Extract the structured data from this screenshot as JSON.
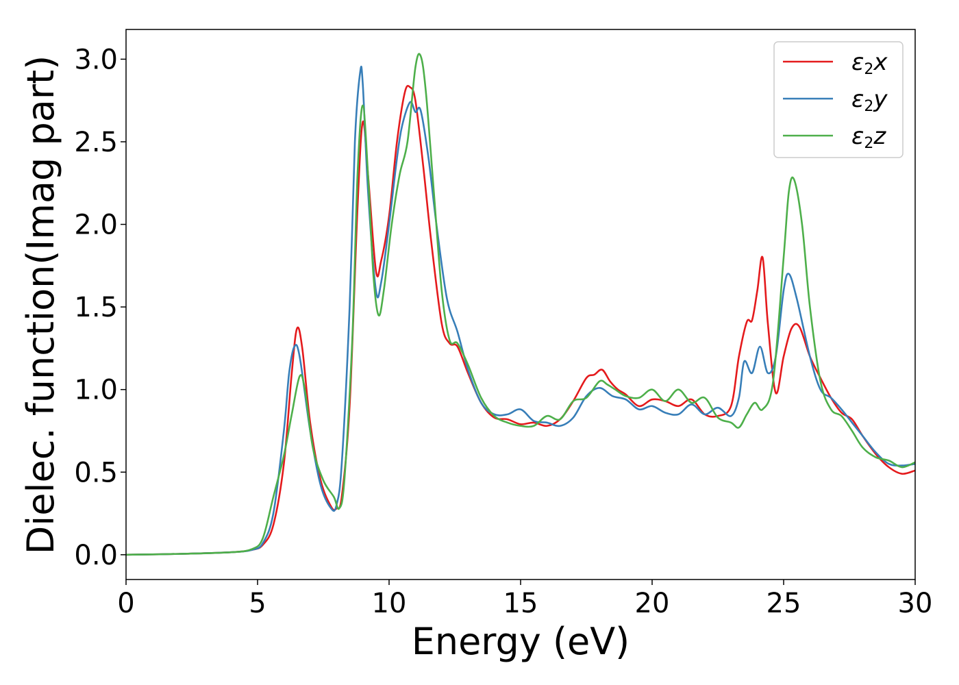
{
  "chart_data": {
    "type": "line",
    "title": "",
    "xlabel": "Energy (eV)",
    "ylabel": "Dielec. function(Imag part)",
    "xlim": [
      0,
      30
    ],
    "ylim": [
      -0.15,
      3.18
    ],
    "xticks": [
      0,
      5,
      10,
      15,
      20,
      25,
      30
    ],
    "xtick_labels": [
      "0",
      "5",
      "10",
      "15",
      "20",
      "25",
      "30"
    ],
    "yticks": [
      0.0,
      0.5,
      1.0,
      1.5,
      2.0,
      2.5,
      3.0
    ],
    "ytick_labels": [
      "0.0",
      "0.5",
      "1.0",
      "1.5",
      "2.0",
      "2.5",
      "3.0"
    ],
    "grid": false,
    "legend_position": "top-right",
    "series": [
      {
        "name": "ε₂x",
        "legend_base": "ε",
        "legend_sub": "2",
        "legend_var": "x",
        "color": "#e41a1c",
        "x": [
          0,
          2,
          4,
          4.8,
          5.2,
          5.6,
          6.0,
          6.3,
          6.5,
          6.7,
          7.0,
          7.4,
          7.8,
          8.0,
          8.2,
          8.5,
          8.8,
          9.0,
          9.2,
          9.5,
          9.7,
          10.0,
          10.3,
          10.6,
          10.8,
          11.0,
          11.3,
          11.6,
          12.0,
          12.3,
          12.6,
          13.0,
          13.5,
          14.0,
          14.5,
          15.0,
          15.5,
          16.0,
          16.5,
          17.0,
          17.5,
          17.8,
          18.1,
          18.4,
          18.7,
          19.0,
          19.5,
          20.0,
          20.5,
          21.0,
          21.5,
          22.0,
          22.5,
          23.0,
          23.3,
          23.6,
          23.8,
          24.0,
          24.2,
          24.4,
          24.7,
          25.0,
          25.3,
          25.6,
          26.0,
          26.4,
          26.8,
          27.2,
          27.6,
          28.0,
          28.5,
          29.0,
          29.5,
          30.0
        ],
        "values": [
          0,
          0.005,
          0.015,
          0.03,
          0.06,
          0.18,
          0.55,
          1.1,
          1.37,
          1.25,
          0.8,
          0.45,
          0.29,
          0.28,
          0.35,
          0.9,
          2.1,
          2.62,
          2.3,
          1.72,
          1.78,
          2.05,
          2.5,
          2.8,
          2.83,
          2.75,
          2.35,
          1.9,
          1.4,
          1.28,
          1.26,
          1.1,
          0.92,
          0.83,
          0.82,
          0.79,
          0.8,
          0.78,
          0.82,
          0.93,
          1.07,
          1.09,
          1.12,
          1.05,
          1.0,
          0.97,
          0.9,
          0.94,
          0.93,
          0.9,
          0.94,
          0.85,
          0.84,
          0.9,
          1.2,
          1.41,
          1.42,
          1.6,
          1.8,
          1.4,
          0.98,
          1.2,
          1.37,
          1.38,
          1.2,
          1.07,
          0.95,
          0.86,
          0.82,
          0.72,
          0.61,
          0.53,
          0.49,
          0.51
        ]
      },
      {
        "name": "ε₂y",
        "legend_base": "ε",
        "legend_sub": "2",
        "legend_var": "y",
        "color": "#377eb8",
        "x": [
          0,
          2,
          4,
          4.8,
          5.2,
          5.6,
          6.0,
          6.2,
          6.4,
          6.6,
          7.0,
          7.4,
          7.8,
          8.0,
          8.2,
          8.5,
          8.7,
          8.9,
          9.0,
          9.2,
          9.5,
          9.7,
          10.0,
          10.3,
          10.5,
          10.8,
          11.0,
          11.2,
          11.5,
          11.8,
          12.2,
          12.6,
          13.0,
          13.5,
          14.0,
          14.5,
          15.0,
          15.5,
          16.0,
          16.5,
          17.0,
          17.5,
          18.0,
          18.5,
          19.0,
          19.5,
          20.0,
          20.5,
          21.0,
          21.5,
          22.0,
          22.5,
          23.0,
          23.3,
          23.5,
          23.8,
          24.1,
          24.4,
          24.7,
          25.0,
          25.2,
          25.5,
          26.0,
          26.4,
          26.8,
          27.2,
          27.6,
          28.0,
          28.5,
          29.0,
          29.5,
          30.0
        ],
        "values": [
          0,
          0.005,
          0.015,
          0.03,
          0.07,
          0.25,
          0.75,
          1.1,
          1.26,
          1.2,
          0.75,
          0.42,
          0.28,
          0.3,
          0.55,
          1.5,
          2.5,
          2.92,
          2.85,
          2.2,
          1.6,
          1.65,
          2.0,
          2.4,
          2.6,
          2.74,
          2.68,
          2.69,
          2.4,
          2.0,
          1.55,
          1.35,
          1.12,
          0.92,
          0.85,
          0.85,
          0.88,
          0.81,
          0.8,
          0.78,
          0.83,
          0.96,
          1.01,
          0.96,
          0.94,
          0.88,
          0.9,
          0.86,
          0.85,
          0.91,
          0.85,
          0.89,
          0.84,
          0.95,
          1.17,
          1.1,
          1.26,
          1.1,
          1.2,
          1.6,
          1.7,
          1.55,
          1.2,
          1.0,
          0.95,
          0.88,
          0.8,
          0.72,
          0.62,
          0.55,
          0.54,
          0.55
        ]
      },
      {
        "name": "ε₂z",
        "legend_base": "ε",
        "legend_sub": "2",
        "legend_var": "z",
        "color": "#4daf4a",
        "x": [
          0,
          2,
          4,
          4.8,
          5.2,
          5.6,
          6.0,
          6.3,
          6.6,
          6.8,
          7.1,
          7.5,
          7.9,
          8.1,
          8.3,
          8.6,
          8.8,
          9.0,
          9.2,
          9.4,
          9.6,
          9.8,
          10.1,
          10.4,
          10.7,
          11.0,
          11.2,
          11.4,
          11.7,
          12.0,
          12.3,
          12.6,
          13.0,
          13.5,
          14.0,
          14.5,
          15.0,
          15.5,
          16.0,
          16.5,
          17.0,
          17.5,
          18.0,
          18.3,
          18.6,
          19.0,
          19.5,
          20.0,
          20.5,
          21.0,
          21.5,
          22.0,
          22.5,
          23.0,
          23.3,
          23.6,
          23.9,
          24.2,
          24.6,
          25.0,
          25.2,
          25.4,
          25.7,
          26.0,
          26.4,
          26.8,
          27.2,
          27.6,
          28.0,
          28.5,
          29.0,
          29.5,
          30.0
        ],
        "values": [
          0,
          0.005,
          0.015,
          0.035,
          0.1,
          0.35,
          0.6,
          0.85,
          1.08,
          1.0,
          0.65,
          0.45,
          0.35,
          0.28,
          0.45,
          1.3,
          2.3,
          2.72,
          2.3,
          1.7,
          1.45,
          1.6,
          2.0,
          2.3,
          2.5,
          2.95,
          3.02,
          2.8,
          2.2,
          1.6,
          1.3,
          1.28,
          1.15,
          0.95,
          0.84,
          0.8,
          0.78,
          0.78,
          0.84,
          0.82,
          0.93,
          0.95,
          1.05,
          1.03,
          1.0,
          0.96,
          0.95,
          1.0,
          0.93,
          1.0,
          0.92,
          0.95,
          0.83,
          0.8,
          0.77,
          0.85,
          0.92,
          0.88,
          1.05,
          1.8,
          2.2,
          2.27,
          2.0,
          1.5,
          1.05,
          0.88,
          0.84,
          0.75,
          0.65,
          0.59,
          0.57,
          0.53,
          0.56
        ]
      }
    ]
  }
}
